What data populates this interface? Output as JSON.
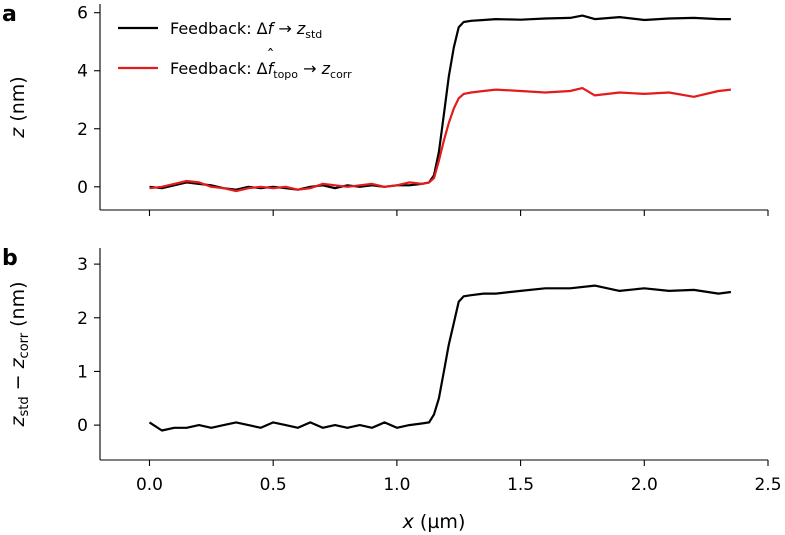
{
  "chart_data": {
    "type": "line",
    "shared_x": {
      "label": "x (µm)",
      "label_parts": {
        "var": "x",
        "unit": " (µm)"
      },
      "lim": [
        -0.2,
        2.5
      ],
      "ticks": [
        0.0,
        0.5,
        1.0,
        1.5,
        2.0,
        2.5
      ],
      "tick_labels": [
        "0.0",
        "0.5",
        "1.0",
        "1.5",
        "2.0",
        "2.5"
      ]
    },
    "panels": [
      {
        "letter": "a",
        "ylabel": "z (nm)",
        "ylabel_parts": {
          "var": "z",
          "unit": " (nm)"
        },
        "ylim": [
          -0.8,
          6.3
        ],
        "yticks": [
          0,
          2,
          4,
          6
        ],
        "ytick_labels": [
          "0",
          "2",
          "4",
          "6"
        ],
        "legend": {
          "position": "top-left",
          "entries": [
            {
              "series": "std",
              "prefix": "Feedback: Δ",
              "symbol": "f",
              "arrow": " → ",
              "target_var": "z",
              "target_sub": "std"
            },
            {
              "series": "corr",
              "prefix": "Feedback: Δ",
              "symbol": "f",
              "symbol_accent": "ˆ",
              "symbol_sub": "topo",
              "arrow": " → ",
              "target_var": "z",
              "target_sub": "corr"
            }
          ]
        },
        "series": [
          {
            "name": "std",
            "label": "Feedback: Δf → z_std",
            "color": "#000000",
            "x": [
              0.0,
              0.05,
              0.1,
              0.15,
              0.2,
              0.25,
              0.3,
              0.35,
              0.4,
              0.45,
              0.5,
              0.55,
              0.6,
              0.65,
              0.7,
              0.75,
              0.8,
              0.85,
              0.9,
              0.95,
              1.0,
              1.05,
              1.1,
              1.13,
              1.15,
              1.17,
              1.19,
              1.21,
              1.23,
              1.25,
              1.27,
              1.3,
              1.35,
              1.4,
              1.5,
              1.6,
              1.7,
              1.75,
              1.8,
              1.9,
              2.0,
              2.1,
              2.2,
              2.3,
              2.35
            ],
            "y": [
              0.0,
              -0.05,
              0.05,
              0.15,
              0.1,
              0.05,
              -0.05,
              -0.1,
              0.0,
              -0.05,
              0.0,
              -0.05,
              -0.1,
              0.0,
              0.05,
              -0.05,
              0.05,
              0.0,
              0.05,
              0.0,
              0.05,
              0.05,
              0.1,
              0.15,
              0.4,
              1.2,
              2.5,
              3.8,
              4.8,
              5.5,
              5.68,
              5.72,
              5.75,
              5.78,
              5.76,
              5.8,
              5.82,
              5.9,
              5.78,
              5.85,
              5.75,
              5.8,
              5.82,
              5.78,
              5.78
            ]
          },
          {
            "name": "corr",
            "label": "Feedback: Δf̂_topo → z_corr",
            "color": "#e41a1c",
            "x": [
              0.0,
              0.05,
              0.1,
              0.15,
              0.2,
              0.25,
              0.3,
              0.35,
              0.4,
              0.45,
              0.5,
              0.55,
              0.6,
              0.65,
              0.7,
              0.75,
              0.8,
              0.85,
              0.9,
              0.95,
              1.0,
              1.05,
              1.1,
              1.13,
              1.15,
              1.17,
              1.19,
              1.21,
              1.23,
              1.25,
              1.27,
              1.3,
              1.35,
              1.4,
              1.5,
              1.6,
              1.7,
              1.75,
              1.8,
              1.9,
              2.0,
              2.1,
              2.2,
              2.3,
              2.35
            ],
            "y": [
              -0.05,
              0.0,
              0.1,
              0.2,
              0.15,
              0.0,
              -0.05,
              -0.15,
              -0.05,
              0.0,
              -0.05,
              0.0,
              -0.1,
              -0.05,
              0.1,
              0.05,
              0.0,
              0.05,
              0.1,
              0.0,
              0.05,
              0.15,
              0.1,
              0.15,
              0.3,
              0.9,
              1.6,
              2.2,
              2.7,
              3.05,
              3.2,
              3.25,
              3.3,
              3.35,
              3.3,
              3.25,
              3.3,
              3.4,
              3.15,
              3.25,
              3.2,
              3.25,
              3.1,
              3.3,
              3.35
            ]
          }
        ]
      },
      {
        "letter": "b",
        "ylabel": "z_std − z_corr (nm)",
        "ylabel_parts": {
          "var1": "z",
          "sub1": "std",
          "minus": " − ",
          "var2": "z",
          "sub2": "corr",
          "unit": " (nm)"
        },
        "ylim": [
          -0.65,
          3.3
        ],
        "yticks": [
          0,
          1,
          2,
          3
        ],
        "ytick_labels": [
          "0",
          "1",
          "2",
          "3"
        ],
        "series": [
          {
            "name": "diff",
            "color": "#000000",
            "x": [
              0.0,
              0.05,
              0.1,
              0.15,
              0.2,
              0.25,
              0.3,
              0.35,
              0.4,
              0.45,
              0.5,
              0.55,
              0.6,
              0.65,
              0.7,
              0.75,
              0.8,
              0.85,
              0.9,
              0.95,
              1.0,
              1.05,
              1.1,
              1.13,
              1.15,
              1.17,
              1.19,
              1.21,
              1.23,
              1.25,
              1.27,
              1.3,
              1.35,
              1.4,
              1.5,
              1.6,
              1.7,
              1.8,
              1.9,
              2.0,
              2.1,
              2.2,
              2.3,
              2.35
            ],
            "y": [
              0.05,
              -0.1,
              -0.05,
              -0.05,
              0.0,
              -0.05,
              0.0,
              0.05,
              0.0,
              -0.05,
              0.05,
              0.0,
              -0.05,
              0.05,
              -0.05,
              0.0,
              -0.05,
              0.0,
              -0.05,
              0.05,
              -0.05,
              0.0,
              0.03,
              0.05,
              0.2,
              0.5,
              1.0,
              1.5,
              1.9,
              2.3,
              2.4,
              2.42,
              2.45,
              2.45,
              2.5,
              2.55,
              2.55,
              2.6,
              2.5,
              2.55,
              2.5,
              2.52,
              2.45,
              2.48
            ]
          }
        ]
      }
    ]
  }
}
